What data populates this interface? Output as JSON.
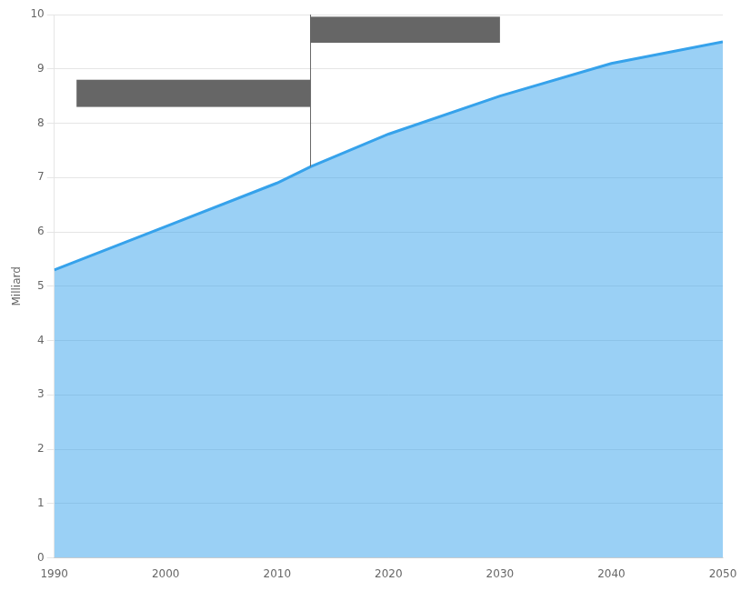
{
  "chart_data": {
    "type": "area",
    "x": [
      1990,
      2000,
      2010,
      2013,
      2020,
      2030,
      2040,
      2050
    ],
    "values": [
      5.3,
      6.1,
      6.9,
      7.2,
      7.8,
      8.5,
      9.1,
      9.5
    ],
    "ylabel": "Milliard",
    "xlim": [
      1990,
      2050
    ],
    "xticks": [
      1990,
      2000,
      2010,
      2020,
      2030,
      2040,
      2050
    ],
    "ylim": [
      0,
      10
    ],
    "yticks": [
      0,
      1,
      2,
      3,
      4,
      5,
      6,
      7,
      8,
      9,
      10
    ],
    "grid": "y",
    "vlines": [
      2013
    ],
    "rects": [
      {
        "x": 1992,
        "y": 8.3,
        "width": 21,
        "height": 0.5
      },
      {
        "x": 2013,
        "y": 9.48,
        "width": 17,
        "height": 0.48
      }
    ]
  }
}
